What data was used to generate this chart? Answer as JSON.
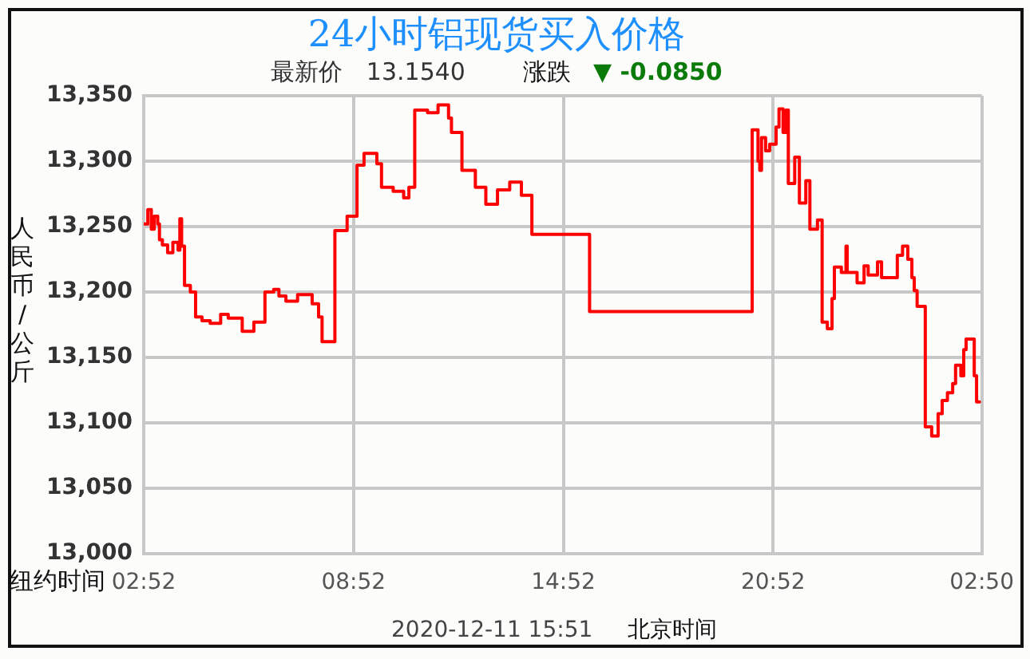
{
  "chart_data": {
    "type": "step",
    "title": "24小时铝现货买入价格",
    "subtitle": "最新价 13.1540",
    "xlabel": "纽约时间",
    "ylabel": "人民币/公斤",
    "annotations": [
      "涨跌",
      "▼ -0.0850",
      "2020-12-11 15:51",
      "北京时间"
    ],
    "x": [
      "2020-12-10T02:52",
      "2020-12-10T02:59",
      "2020-12-10T03:05",
      "2020-12-10T03:10",
      "2020-12-10T03:16",
      "2020-12-10T03:19",
      "2020-12-10T03:24",
      "2020-12-10T03:33",
      "2020-12-10T03:42",
      "2020-12-10T03:51",
      "2020-12-10T03:54",
      "2020-12-10T03:57",
      "2020-12-10T04:02",
      "2020-12-10T04:12",
      "2020-12-10T04:21",
      "2020-12-10T04:32",
      "2020-12-10T04:46",
      "2020-12-10T05:04",
      "2020-12-10T05:17",
      "2020-12-10T05:41",
      "2020-12-10T06:01",
      "2020-12-10T06:20",
      "2020-12-10T06:35",
      "2020-12-10T06:44",
      "2020-12-10T06:56",
      "2020-12-10T07:16",
      "2020-12-10T07:41",
      "2020-12-10T07:52",
      "2020-12-10T07:58",
      "2020-12-10T08:20",
      "2020-12-10T08:41",
      "2020-12-10T08:58",
      "2020-12-10T09:10",
      "2020-12-10T09:32",
      "2020-12-10T09:40",
      "2020-12-10T10:00",
      "2020-12-10T10:18",
      "2020-12-10T10:27",
      "2020-12-10T10:37",
      "2020-12-10T10:59",
      "2020-12-10T11:17",
      "2020-12-10T11:35",
      "2020-12-10T11:40",
      "2020-12-10T11:58",
      "2020-12-10T12:21",
      "2020-12-10T12:39",
      "2020-12-10T12:59",
      "2020-12-10T13:20",
      "2020-12-10T13:40",
      "2020-12-10T13:58",
      "2020-12-10T15:37",
      "2020-12-10T20:16",
      "2020-12-10T20:26",
      "2020-12-10T20:29",
      "2020-12-10T20:32",
      "2020-12-10T20:39",
      "2020-12-10T20:46",
      "2020-12-10T20:57",
      "2020-12-10T21:02",
      "2020-12-10T21:09",
      "2020-12-10T21:14",
      "2020-12-10T21:18",
      "2020-12-10T21:29",
      "2020-12-10T21:37",
      "2020-12-10T21:48",
      "2020-12-10T21:55",
      "2020-12-10T22:08",
      "2020-12-10T22:16",
      "2020-12-10T22:25",
      "2020-12-10T22:33",
      "2020-12-10T22:37",
      "2020-12-10T22:49",
      "2020-12-10T22:57",
      "2020-12-10T22:59",
      "2020-12-10T23:16",
      "2020-12-10T23:28",
      "2020-12-10T23:35",
      "2020-12-10T23:51",
      "2020-12-10T23:58",
      "2020-12-11T00:25",
      "2020-12-11T00:34",
      "2020-12-11T00:43",
      "2020-12-11T00:50",
      "2020-12-11T00:54",
      "2020-12-11T00:59",
      "2020-12-11T01:13",
      "2020-12-11T01:24",
      "2020-12-11T01:35",
      "2020-12-11T01:42",
      "2020-12-11T01:51",
      "2020-12-11T02:00",
      "2020-12-11T02:05",
      "2020-12-11T02:14",
      "2020-12-11T02:19",
      "2020-12-11T02:23",
      "2020-12-11T02:37",
      "2020-12-11T02:41",
      "2020-12-11T02:46"
    ],
    "series": [
      {
        "color": "#ff0000",
        "values": [
          13252,
          13263,
          13248,
          13258,
          13252,
          13240,
          13236,
          13230,
          13238,
          13232,
          13256,
          13235,
          13205,
          13200,
          13181,
          13178,
          13176,
          13183,
          13180,
          13170,
          13177,
          13200,
          13202,
          13197,
          13193,
          13198,
          13191,
          13181,
          13162,
          13247,
          13258,
          13297,
          13306,
          13298,
          13280,
          13277,
          13272,
          13280,
          13339,
          13337,
          13343,
          13333,
          13322,
          13293,
          13280,
          13267,
          13278,
          13284,
          13274,
          13244,
          13185,
          13324,
          13300,
          13293,
          13318,
          13308,
          13313,
          13326,
          13340,
          13322,
          13339,
          13283,
          13303,
          13268,
          13285,
          13248,
          13255,
          13177,
          13172,
          13195,
          13219,
          13215,
          13235,
          13215,
          13207,
          13220,
          13213,
          13223,
          13211,
          13228,
          13235,
          13225,
          13211,
          13201,
          13189,
          13097,
          13090,
          13107,
          13117,
          13123,
          13130,
          13144,
          13136,
          13156,
          13164,
          13136,
          13116,
          13116
        ]
      }
    ],
    "xlim": [
      "2020-12-10T02:52",
      "2020-12-11T02:50"
    ],
    "xticks": [
      {
        "value": "2020-12-10T02:52",
        "label": "02:52"
      },
      {
        "value": "2020-12-10T08:52",
        "label": "08:52"
      },
      {
        "value": "2020-12-10T14:52",
        "label": "14:52"
      },
      {
        "value": "2020-12-10T20:52",
        "label": "20:52"
      },
      {
        "value": "2020-12-11T02:50",
        "label": "02:50"
      }
    ],
    "ylim": [
      13000,
      13350
    ],
    "yticks": [
      {
        "value": 13000,
        "label": "13,000"
      },
      {
        "value": 13050,
        "label": "13,050"
      },
      {
        "value": 13100,
        "label": "13,100"
      },
      {
        "value": 13150,
        "label": "13,150"
      },
      {
        "value": 13200,
        "label": "13,200"
      },
      {
        "value": 13250,
        "label": "13,250"
      },
      {
        "value": 13300,
        "label": "13,300"
      },
      {
        "value": 13350,
        "label": "13,350"
      }
    ],
    "grid": true
  }
}
